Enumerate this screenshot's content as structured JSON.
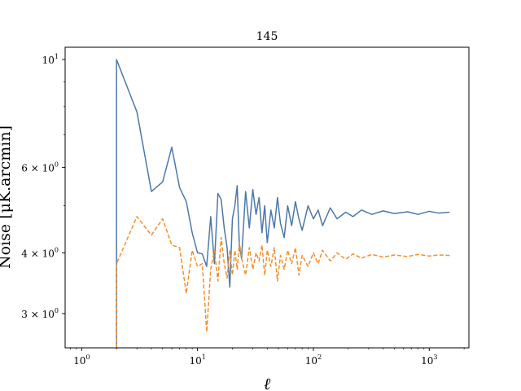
{
  "chart_data": {
    "type": "line",
    "title": "145",
    "xlabel": "ℓ",
    "ylabel": "Noise [μK.arcmin]",
    "xscale": "log",
    "yscale": "log",
    "xlim": [
      0.72,
      2200
    ],
    "ylim": [
      2.55,
      10.6
    ],
    "grid": false,
    "legend": "none",
    "x_ticks": [
      {
        "value": 1,
        "base": "10",
        "exp": "0"
      },
      {
        "value": 10,
        "base": "10",
        "exp": "1"
      },
      {
        "value": 100,
        "base": "10",
        "exp": "2"
      },
      {
        "value": 1000,
        "base": "10",
        "exp": "3"
      }
    ],
    "y_ticks": [
      {
        "value": 10,
        "base": "10",
        "exp": "1",
        "mant": ""
      },
      {
        "value": 6,
        "base": "10",
        "exp": "0",
        "mant": "6 × "
      },
      {
        "value": 4,
        "base": "10",
        "exp": "0",
        "mant": "4 × "
      },
      {
        "value": 3,
        "base": "10",
        "exp": "0",
        "mant": "3 × "
      }
    ],
    "series": [
      {
        "color": "#4c78a8",
        "style": "solid",
        "points": [
          [
            2,
            2.55
          ],
          [
            2,
            10.0
          ],
          [
            3,
            7.8
          ],
          [
            4,
            5.35
          ],
          [
            5,
            5.6
          ],
          [
            6,
            6.6
          ],
          [
            7,
            5.45
          ],
          [
            8,
            5.1
          ],
          [
            9,
            4.4
          ],
          [
            10,
            4.0
          ],
          [
            11,
            3.98
          ],
          [
            12,
            3.75
          ],
          [
            13,
            4.75
          ],
          [
            14,
            3.8
          ],
          [
            15,
            5.3
          ],
          [
            16,
            5.15
          ],
          [
            17,
            4.5
          ],
          [
            18,
            4.1
          ],
          [
            19,
            3.4
          ],
          [
            20,
            4.7
          ],
          [
            21,
            5.0
          ],
          [
            22,
            5.5
          ],
          [
            23,
            4.1
          ],
          [
            24,
            3.9
          ],
          [
            26,
            5.35
          ],
          [
            28,
            4.5
          ],
          [
            30,
            5.4
          ],
          [
            32,
            4.8
          ],
          [
            34,
            5.2
          ],
          [
            36,
            4.4
          ],
          [
            38,
            5.0
          ],
          [
            40,
            4.2
          ],
          [
            43,
            4.9
          ],
          [
            46,
            4.5
          ],
          [
            49,
            5.2
          ],
          [
            52,
            4.6
          ],
          [
            56,
            4.3
          ],
          [
            60,
            5.0
          ],
          [
            65,
            4.55
          ],
          [
            70,
            5.1
          ],
          [
            75,
            4.7
          ],
          [
            80,
            4.45
          ],
          [
            90,
            5.0
          ],
          [
            100,
            4.7
          ],
          [
            110,
            4.9
          ],
          [
            120,
            4.55
          ],
          [
            140,
            4.95
          ],
          [
            160,
            4.7
          ],
          [
            190,
            4.85
          ],
          [
            220,
            4.75
          ],
          [
            260,
            4.9
          ],
          [
            320,
            4.8
          ],
          [
            400,
            4.88
          ],
          [
            500,
            4.82
          ],
          [
            650,
            4.86
          ],
          [
            800,
            4.8
          ],
          [
            1000,
            4.87
          ],
          [
            1200,
            4.83
          ],
          [
            1500,
            4.85
          ]
        ]
      },
      {
        "color": "#f28e2b",
        "style": "dashed",
        "points": [
          [
            2,
            2.55
          ],
          [
            2,
            3.8
          ],
          [
            3,
            4.75
          ],
          [
            4,
            4.35
          ],
          [
            5,
            4.7
          ],
          [
            6,
            4.15
          ],
          [
            7,
            4.1
          ],
          [
            8,
            3.3
          ],
          [
            9,
            4.05
          ],
          [
            10,
            3.75
          ],
          [
            11,
            3.8
          ],
          [
            12,
            2.75
          ],
          [
            13,
            3.7
          ],
          [
            14,
            4.05
          ],
          [
            15,
            3.5
          ],
          [
            16,
            4.3
          ],
          [
            17,
            3.8
          ],
          [
            18,
            3.55
          ],
          [
            19,
            4.05
          ],
          [
            20,
            3.6
          ],
          [
            21,
            4.05
          ],
          [
            22,
            3.7
          ],
          [
            23,
            4.2
          ],
          [
            24,
            3.9
          ],
          [
            26,
            3.6
          ],
          [
            28,
            4.1
          ],
          [
            30,
            3.7
          ],
          [
            32,
            4.0
          ],
          [
            34,
            3.85
          ],
          [
            36,
            4.15
          ],
          [
            38,
            3.6
          ],
          [
            40,
            4.05
          ],
          [
            43,
            3.75
          ],
          [
            46,
            4.1
          ],
          [
            49,
            3.5
          ],
          [
            52,
            3.95
          ],
          [
            56,
            3.7
          ],
          [
            60,
            4.05
          ],
          [
            65,
            3.8
          ],
          [
            70,
            4.1
          ],
          [
            75,
            3.6
          ],
          [
            80,
            3.95
          ],
          [
            90,
            3.75
          ],
          [
            100,
            4.0
          ],
          [
            110,
            3.8
          ],
          [
            120,
            4.05
          ],
          [
            140,
            3.85
          ],
          [
            160,
            4.0
          ],
          [
            190,
            3.88
          ],
          [
            220,
            3.98
          ],
          [
            260,
            3.9
          ],
          [
            320,
            3.97
          ],
          [
            400,
            3.92
          ],
          [
            500,
            3.96
          ],
          [
            650,
            3.93
          ],
          [
            800,
            3.97
          ],
          [
            1000,
            3.94
          ],
          [
            1200,
            3.96
          ],
          [
            1500,
            3.95
          ]
        ]
      }
    ]
  }
}
